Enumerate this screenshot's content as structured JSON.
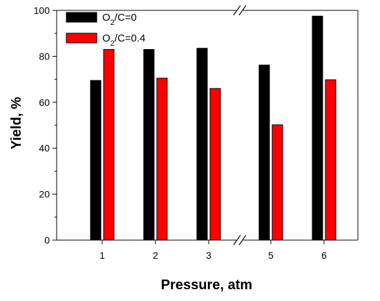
{
  "chart_data": {
    "type": "bar",
    "categories": [
      "1",
      "2",
      "3",
      "5",
      "6"
    ],
    "series": [
      {
        "name_main": "O",
        "name_sub": "2",
        "name_rest": "/C=0",
        "color": "#000000",
        "values": [
          69.5,
          83,
          83.5,
          76.2,
          97.5
        ]
      },
      {
        "name_main": "O",
        "name_sub": "2",
        "name_rest": "/C=0.4",
        "color": "#ff0000",
        "values": [
          83,
          70.5,
          66,
          50.2,
          69.8
        ]
      }
    ],
    "xlabel": "Pressure, atm",
    "ylabel": "Yield, %",
    "ylim": [
      0,
      100
    ],
    "yticks": [
      0,
      20,
      40,
      60,
      80,
      100
    ],
    "axis_break": "between 3 and 5",
    "grid": false,
    "legend_position": "top-left"
  }
}
